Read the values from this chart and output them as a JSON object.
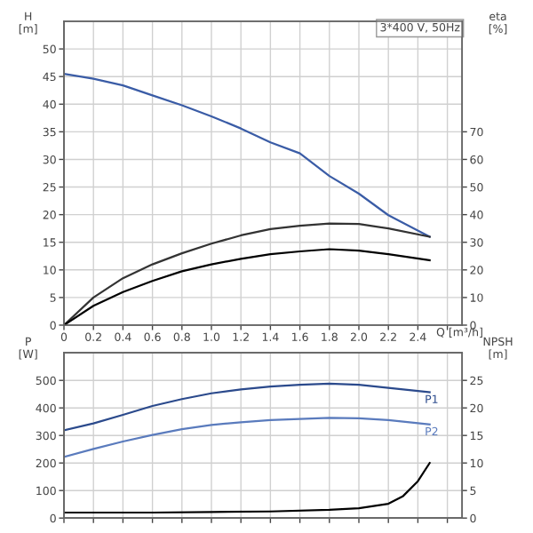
{
  "chart_data": [
    {
      "type": "line",
      "title": "3*400 V, 50Hz",
      "xlabel": "Q [m³/h]",
      "ylabel": "H\n[m]",
      "y2label": "eta\n[%]",
      "x": [
        0,
        0.2,
        0.4,
        0.6,
        0.8,
        1.0,
        1.2,
        1.4,
        1.6,
        1.8,
        2.0,
        2.2,
        2.48
      ],
      "series": [
        {
          "color": "#3a5ca6",
          "axis": "y",
          "values": [
            45.5,
            44.6,
            43.4,
            41.6,
            39.8,
            37.8,
            35.6,
            33.1,
            31.1,
            27,
            23.8,
            19.9,
            16
          ]
        },
        {
          "color": "#333333",
          "axis": "y2",
          "values": [
            0,
            10,
            17,
            22,
            26,
            29.5,
            32.5,
            34.8,
            36,
            36.8,
            36.6,
            35,
            32
          ]
        },
        {
          "color": "#000000",
          "axis": "y2",
          "values": [
            0,
            7,
            12,
            16,
            19.5,
            22,
            24,
            25.7,
            26.7,
            27.5,
            27,
            25.7,
            23.5
          ]
        }
      ],
      "xlim": [
        0,
        2.7
      ],
      "xticks": [
        0,
        0.2,
        0.4,
        0.6,
        0.8,
        {
          "value": 1.0,
          "label": "1.0"
        },
        1.2,
        1.4,
        1.6,
        1.8,
        {
          "value": 2.0,
          "label": "2.0"
        },
        2.2,
        2.4,
        {
          "value": 2.6,
          "label": null
        }
      ],
      "ylim": [
        0,
        55
      ],
      "yticks": [
        0,
        5,
        10,
        15,
        20,
        25,
        30,
        35,
        40,
        45,
        50
      ],
      "y2lim": [
        0,
        110
      ],
      "y2ticks": [
        0,
        10,
        20,
        30,
        40,
        50,
        60,
        70
      ],
      "grid": true,
      "legend": false
    },
    {
      "type": "line",
      "ylabel": "P\n[W]",
      "y2label": "NPSH\n[m]",
      "x": [
        0,
        0.2,
        0.4,
        0.6,
        0.8,
        1.0,
        1.2,
        1.4,
        1.6,
        1.8,
        2.0,
        2.2,
        2.48
      ],
      "series": [
        {
          "name": "P1",
          "color": "#2b4a8c",
          "axis": "y",
          "values": [
            319,
            344,
            375,
            407,
            432,
            453,
            467,
            478,
            484,
            488,
            484,
            473,
            457
          ]
        },
        {
          "name": "P2",
          "color": "#5a7bbd",
          "axis": "y",
          "values": [
            222,
            251,
            278,
            302,
            323,
            338,
            348,
            356,
            360,
            364,
            362,
            356,
            340
          ]
        },
        {
          "color": "#000000",
          "axis": "y2",
          "x": [
            0,
            0.6,
            1.0,
            1.4,
            1.8,
            2.0,
            2.2,
            2.3,
            2.4,
            2.48
          ],
          "values": [
            1.0,
            1.0,
            1.1,
            1.2,
            1.5,
            1.8,
            2.6,
            4,
            6.7,
            10
          ]
        }
      ],
      "xlim": [
        0,
        2.7
      ],
      "xticks": [
        0,
        0.2,
        0.4,
        0.6,
        0.8,
        1.0,
        1.2,
        1.4,
        1.6,
        1.8,
        2.0,
        2.2,
        2.4,
        2.6
      ],
      "ylim": [
        0,
        600
      ],
      "yticks": [
        0,
        100,
        200,
        300,
        400,
        500
      ],
      "y2lim": [
        0,
        30
      ],
      "y2ticks": [
        0,
        5,
        10,
        15,
        20,
        25
      ],
      "tick_labels": "y",
      "grid": true,
      "legend": false
    }
  ]
}
